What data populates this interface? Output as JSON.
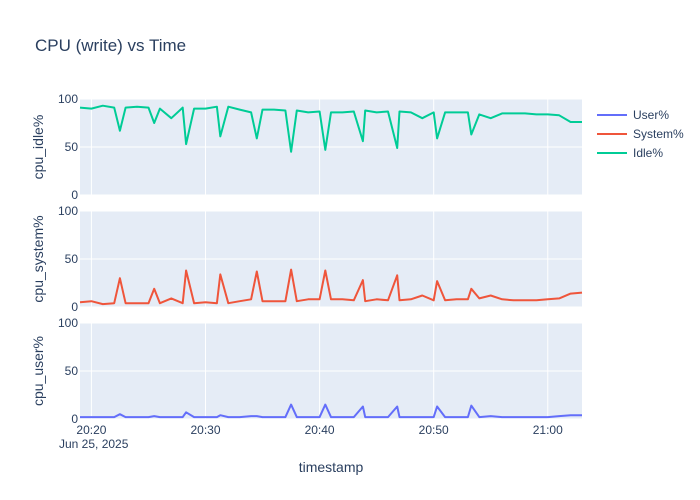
{
  "chart_data": {
    "type": "line",
    "title": "CPU (write) vs Time",
    "xlabel": "timestamp",
    "x_date_label": "Jun 25, 2025",
    "x_ticks": [
      "20:20",
      "20:30",
      "20:40",
      "20:50",
      "21:00"
    ],
    "x_range": [
      "20:19",
      "21:03"
    ],
    "grid": true,
    "legend_position": "top-right",
    "legend": [
      {
        "name": "User%",
        "color": "#636efa"
      },
      {
        "name": "System%",
        "color": "#ef553b"
      },
      {
        "name": "Idle%",
        "color": "#00cc96"
      }
    ],
    "subplots": [
      {
        "ylabel": "cpu_idle%",
        "ylim": [
          0,
          100
        ],
        "yticks": [
          "0",
          "50",
          "100"
        ],
        "series": {
          "name": "Idle%",
          "color": "#00cc96",
          "x": [
            "20:19",
            "20:20",
            "20:21",
            "20:22",
            "20:22.5",
            "20:23",
            "20:24",
            "20:25",
            "20:25.5",
            "20:26",
            "20:27",
            "20:28",
            "20:28.3",
            "20:29",
            "20:30",
            "20:31",
            "20:31.3",
            "20:32",
            "20:33",
            "20:34",
            "20:34.5",
            "20:35",
            "20:36",
            "20:37",
            "20:37.5",
            "20:38",
            "20:39",
            "20:40",
            "20:40.5",
            "20:41",
            "20:42",
            "20:43",
            "20:43.8",
            "20:44",
            "20:45",
            "20:46",
            "20:46.8",
            "20:47",
            "20:48",
            "20:49",
            "20:50",
            "20:50.3",
            "20:51",
            "20:52",
            "20:53",
            "20:53.3",
            "20:54",
            "20:55",
            "20:56",
            "20:57",
            "20:58",
            "20:59",
            "21:00",
            "21:01",
            "21:02",
            "21:03"
          ],
          "y": [
            91,
            90,
            93,
            91,
            67,
            91,
            92,
            91,
            75,
            90,
            80,
            91,
            53,
            90,
            90,
            92,
            61,
            92,
            89,
            86,
            59,
            89,
            89,
            88,
            45,
            88,
            86,
            87,
            47,
            86,
            86,
            87,
            56,
            88,
            86,
            87,
            49,
            87,
            86,
            80,
            86,
            59,
            86,
            86,
            86,
            63,
            84,
            80,
            85,
            85,
            85,
            84,
            84,
            83,
            76,
            76
          ]
        }
      },
      {
        "ylabel": "cpu_system%",
        "ylim": [
          0,
          100
        ],
        "yticks": [
          "0",
          "50",
          "100"
        ],
        "series": {
          "name": "System%",
          "color": "#ef553b",
          "x": [
            "20:19",
            "20:20",
            "20:21",
            "20:22",
            "20:22.5",
            "20:23",
            "20:24",
            "20:25",
            "20:25.5",
            "20:26",
            "20:27",
            "20:28",
            "20:28.3",
            "20:29",
            "20:30",
            "20:31",
            "20:31.3",
            "20:32",
            "20:33",
            "20:34",
            "20:34.5",
            "20:35",
            "20:36",
            "20:37",
            "20:37.5",
            "20:38",
            "20:39",
            "20:40",
            "20:40.5",
            "20:41",
            "20:42",
            "20:43",
            "20:43.8",
            "20:44",
            "20:45",
            "20:46",
            "20:46.8",
            "20:47",
            "20:48",
            "20:49",
            "20:50",
            "20:50.3",
            "20:51",
            "20:52",
            "20:53",
            "20:53.3",
            "20:54",
            "20:55",
            "20:56",
            "20:57",
            "20:58",
            "20:59",
            "21:00",
            "21:01",
            "21:02",
            "21:03"
          ],
          "y": [
            5,
            6,
            3,
            4,
            30,
            4,
            4,
            4,
            19,
            4,
            9,
            4,
            38,
            4,
            5,
            4,
            34,
            4,
            6,
            8,
            37,
            6,
            6,
            6,
            39,
            6,
            8,
            8,
            38,
            8,
            8,
            7,
            28,
            6,
            8,
            7,
            33,
            7,
            8,
            12,
            7,
            27,
            7,
            8,
            8,
            19,
            9,
            12,
            8,
            7,
            7,
            7,
            8,
            9,
            14,
            15
          ]
        }
      },
      {
        "ylabel": "cpu_user%",
        "ylim": [
          0,
          100
        ],
        "yticks": [
          "0",
          "50",
          "100"
        ],
        "series": {
          "name": "User%",
          "color": "#636efa",
          "x": [
            "20:19",
            "20:20",
            "20:21",
            "20:22",
            "20:22.5",
            "20:23",
            "20:24",
            "20:25",
            "20:25.5",
            "20:26",
            "20:27",
            "20:28",
            "20:28.3",
            "20:29",
            "20:30",
            "20:31",
            "20:31.3",
            "20:32",
            "20:33",
            "20:34",
            "20:34.5",
            "20:35",
            "20:36",
            "20:37",
            "20:37.5",
            "20:38",
            "20:39",
            "20:40",
            "20:40.5",
            "20:41",
            "20:42",
            "20:43",
            "20:43.8",
            "20:44",
            "20:45",
            "20:46",
            "20:46.8",
            "20:47",
            "20:48",
            "20:49",
            "20:50",
            "20:50.3",
            "20:51",
            "20:52",
            "20:53",
            "20:53.3",
            "20:54",
            "20:55",
            "20:56",
            "20:57",
            "20:58",
            "20:59",
            "21:00",
            "21:01",
            "21:02",
            "21:03"
          ],
          "y": [
            2,
            2,
            2,
            2,
            5,
            2,
            2,
            2,
            3,
            2,
            2,
            2,
            7,
            2,
            2,
            2,
            4,
            2,
            2,
            3,
            3,
            2,
            2,
            2,
            15,
            2,
            2,
            2,
            15,
            2,
            2,
            2,
            13,
            2,
            2,
            2,
            13,
            2,
            2,
            2,
            2,
            13,
            2,
            2,
            2,
            14,
            2,
            3,
            2,
            2,
            2,
            2,
            2,
            3,
            4,
            4
          ]
        }
      }
    ]
  }
}
